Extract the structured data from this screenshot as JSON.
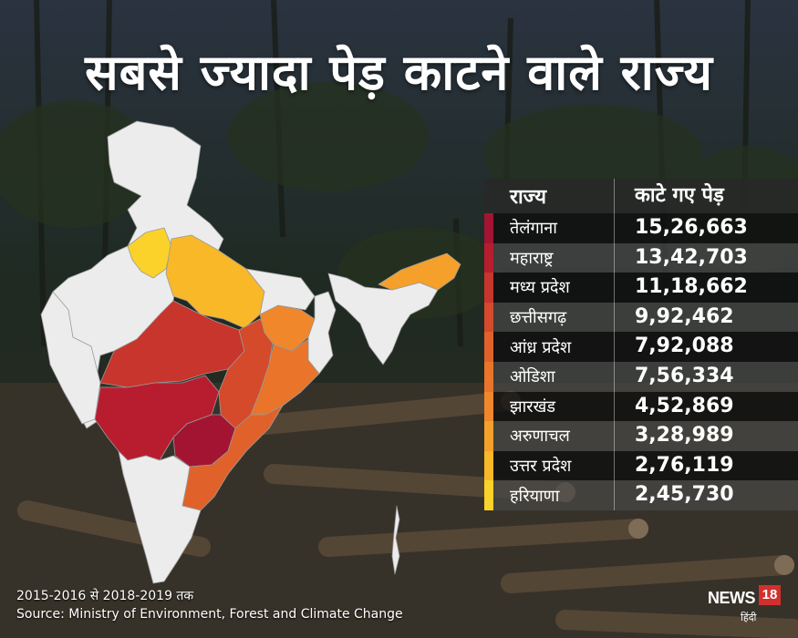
{
  "title": "सबसे ज्यादा पेड़ काटने वाले राज्य",
  "table": {
    "header_state": "राज्य",
    "header_count": "काटे गए पेड़",
    "rows": [
      {
        "state": "तेलंगाना",
        "count": "15,26,663",
        "color": "#a31432"
      },
      {
        "state": "महाराष्ट्र",
        "count": "13,42,703",
        "color": "#b81d2f"
      },
      {
        "state": "मध्य प्रदेश",
        "count": "11,18,662",
        "color": "#c8352c"
      },
      {
        "state": "छत्तीसगढ़",
        "count": "9,92,462",
        "color": "#d44a2a"
      },
      {
        "state": "आंध्र प्रदेश",
        "count": "7,92,088",
        "color": "#e0622a"
      },
      {
        "state": "ओडिशा",
        "count": "7,56,334",
        "color": "#e9742a"
      },
      {
        "state": "झारखंड",
        "count": "4,52,869",
        "color": "#f0872b"
      },
      {
        "state": "अरुणाचल",
        "count": "3,28,989",
        "color": "#f5a02a"
      },
      {
        "state": "उत्तर प्रदेश",
        "count": "2,76,119",
        "color": "#f8b828"
      },
      {
        "state": "हरियाणा",
        "count": "2,45,730",
        "color": "#fbd22a"
      }
    ]
  },
  "footnote": {
    "period": "2015-2016 से 2018-2019 तक",
    "source": "Source: Ministry of Environment, Forest and Climate Change"
  },
  "logo": {
    "brand": "NEWS",
    "number": "18",
    "sub": "हिंदी"
  }
}
